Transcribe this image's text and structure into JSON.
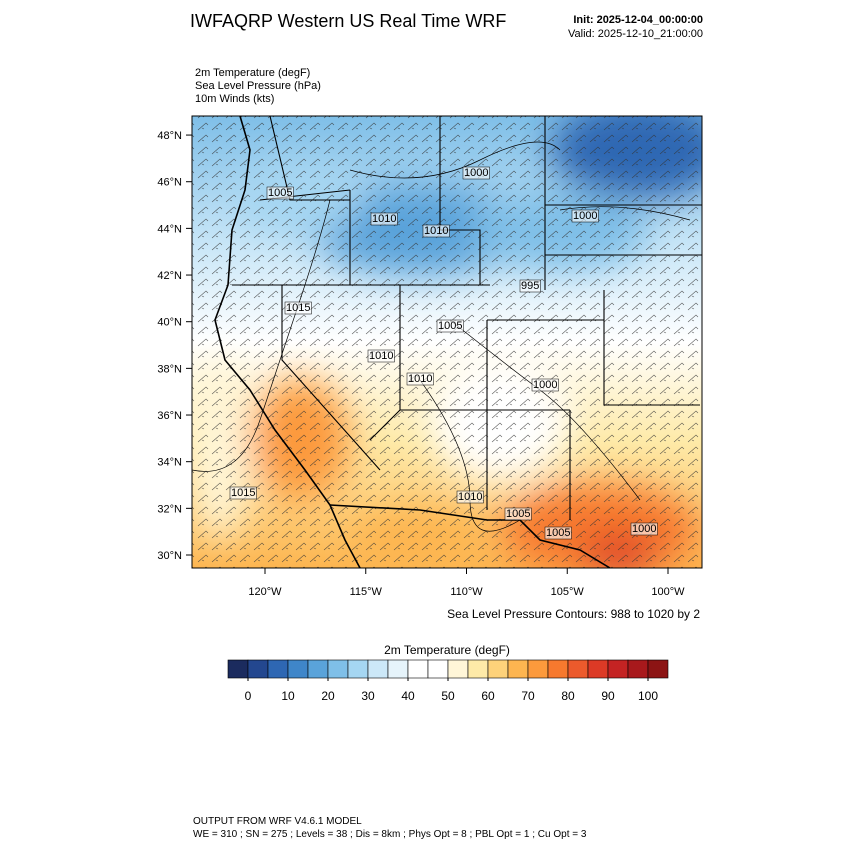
{
  "header": {
    "title": "IWFAQRP Western US Real Time WRF",
    "init": "Init: 2025-12-04_00:00:00",
    "valid": "Valid: 2025-12-10_21:00:00"
  },
  "fields": [
    "2m Temperature   (degF)",
    "Sea Level Pressure   (hPa)",
    "10m Winds   (kts)"
  ],
  "map": {
    "lat_ticks": [
      {
        "value": 48,
        "label": "48°N"
      },
      {
        "value": 46,
        "label": "46°N"
      },
      {
        "value": 44,
        "label": "44°N"
      },
      {
        "value": 42,
        "label": "42°N"
      },
      {
        "value": 40,
        "label": "40°N"
      },
      {
        "value": 38,
        "label": "38°N"
      },
      {
        "value": 36,
        "label": "36°N"
      },
      {
        "value": 34,
        "label": "34°N"
      },
      {
        "value": 32,
        "label": "32°N"
      },
      {
        "value": 30,
        "label": "30°N"
      }
    ],
    "lon_ticks": [
      {
        "value": -120,
        "label": "120°W"
      },
      {
        "value": -115,
        "label": "115°W"
      },
      {
        "value": -110,
        "label": "110°W"
      },
      {
        "value": -105,
        "label": "105°W"
      },
      {
        "value": -100,
        "label": "100°W"
      }
    ],
    "contour_labels": [
      "1005",
      "1010",
      "1010",
      "1000",
      "1000",
      "995",
      "1015",
      "1005",
      "1010",
      "1010",
      "1000",
      "1015",
      "1010",
      "1005",
      "1005",
      "1000"
    ],
    "contour_note": "Sea Level Pressure Contours: 988 to 1020 by 2"
  },
  "colorbar": {
    "title": "2m Temperature  (degF)",
    "ticks": [
      0,
      10,
      20,
      30,
      40,
      50,
      60,
      70,
      80,
      90,
      100
    ],
    "colors": [
      "#1b2b5e",
      "#23478f",
      "#2e67b3",
      "#3f86c9",
      "#5aa3da",
      "#7fbfe8",
      "#a5d6f2",
      "#cce8f8",
      "#e6f4fb",
      "#ffffff",
      "#ffffff",
      "#fff6d8",
      "#feeaa8",
      "#fed27a",
      "#fdb550",
      "#fc9a3c",
      "#f7792e",
      "#ec5a2c",
      "#dc3a26",
      "#c42323",
      "#a8191c",
      "#8c1414"
    ]
  },
  "footer": [
    "OUTPUT FROM WRF V4.6.1 MODEL",
    "WE = 310 ; SN = 275 ; Levels = 38 ; Dis = 8km ; Phys Opt = 8 ; PBL Opt = 1 ; Cu Opt = 3"
  ]
}
